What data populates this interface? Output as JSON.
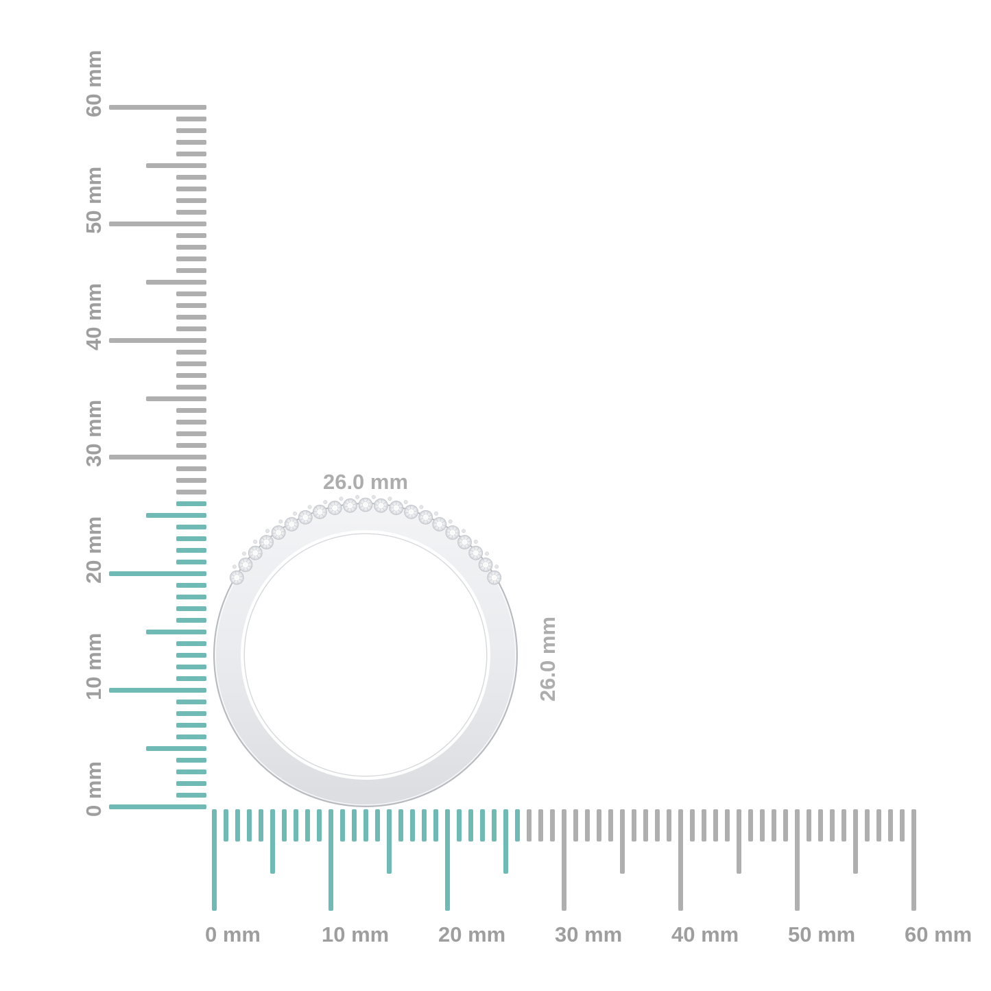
{
  "page": {
    "background": "#FFFFFF",
    "description": "Product measurement diagram of a diamond band ring side view with mm rulers"
  },
  "unit": "mm",
  "colors": {
    "highlight_teal": "#6FBAB5",
    "tick_gray": "#AFAFAF",
    "ruler_label_gray": "#9E9E9E",
    "dimension_label_gray": "#ADADAD",
    "band_edge": "#B6B9BE",
    "band_fill": "#E9EBEE",
    "stone_edge": "#BFC3C8"
  },
  "object": {
    "type": "diamond-band-ring-side-view",
    "width_label": "26.0 mm",
    "height_label": "26.0 mm",
    "width_mm": 26.0,
    "height_mm": 26.0,
    "stone_count": 21
  },
  "vertical_ruler": {
    "unit": "mm",
    "min_mm": 0,
    "max_mm": 60,
    "major_step_mm": 10,
    "half_step_mm": 5,
    "minor_step_mm": 1,
    "highlight_min_mm": 0,
    "highlight_max_mm": 26,
    "labels": [
      {
        "mm": 0,
        "text": "0 mm"
      },
      {
        "mm": 10,
        "text": "10 mm"
      },
      {
        "mm": 20,
        "text": "20 mm"
      },
      {
        "mm": 30,
        "text": "30 mm"
      },
      {
        "mm": 40,
        "text": "40 mm"
      },
      {
        "mm": 50,
        "text": "50 mm"
      },
      {
        "mm": 60,
        "text": "60 mm"
      }
    ]
  },
  "horizontal_ruler": {
    "unit": "mm",
    "min_mm": 0,
    "max_mm": 60,
    "major_step_mm": 10,
    "half_step_mm": 5,
    "minor_step_mm": 1,
    "highlight_min_mm": 0,
    "highlight_max_mm": 26,
    "labels": [
      {
        "mm": 0,
        "text": "0 mm"
      },
      {
        "mm": 10,
        "text": "10 mm"
      },
      {
        "mm": 20,
        "text": "20 mm"
      },
      {
        "mm": 30,
        "text": "30 mm"
      },
      {
        "mm": 40,
        "text": "40 mm"
      },
      {
        "mm": 50,
        "text": "50 mm"
      },
      {
        "mm": 60,
        "text": "60 mm"
      }
    ]
  }
}
